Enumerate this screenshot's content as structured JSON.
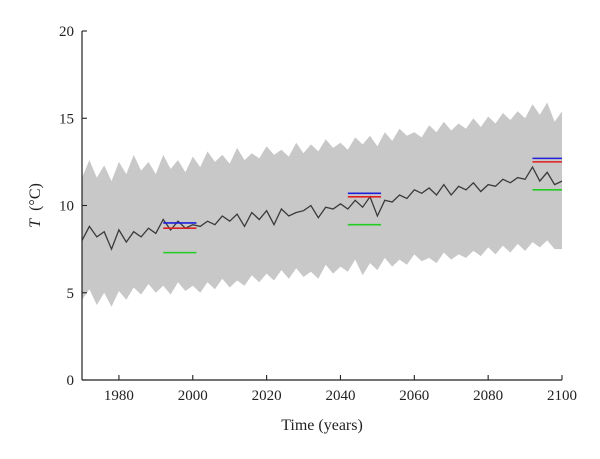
{
  "chart_data": {
    "type": "line",
    "title": "",
    "xlabel": "Time (years)",
    "ylabel": {
      "symbol": "T",
      "unit": "(°C)"
    },
    "xlim": [
      1970,
      2100
    ],
    "ylim": [
      0,
      20
    ],
    "xticks": [
      1980,
      2000,
      2020,
      2040,
      2060,
      2080,
      2100
    ],
    "yticks": [
      0,
      5,
      10,
      15,
      20
    ],
    "grid": false,
    "colors": {
      "band": "#c8c8c8",
      "series": "#3a3a3a",
      "blue": "#1f1fdc",
      "red": "#e02020",
      "green": "#22cc22"
    },
    "band": {
      "x": [
        1970,
        1972,
        1974,
        1976,
        1978,
        1980,
        1982,
        1984,
        1986,
        1988,
        1990,
        1992,
        1994,
        1996,
        1998,
        2000,
        2002,
        2004,
        2006,
        2008,
        2010,
        2012,
        2014,
        2016,
        2018,
        2020,
        2022,
        2024,
        2026,
        2028,
        2030,
        2032,
        2034,
        2036,
        2038,
        2040,
        2042,
        2044,
        2046,
        2048,
        2050,
        2052,
        2054,
        2056,
        2058,
        2060,
        2062,
        2064,
        2066,
        2068,
        2070,
        2072,
        2074,
        2076,
        2078,
        2080,
        2082,
        2084,
        2086,
        2088,
        2090,
        2092,
        2094,
        2096,
        2098,
        2100
      ],
      "upper": [
        11.6,
        12.6,
        11.6,
        12.3,
        11.4,
        12.5,
        11.8,
        12.9,
        12.0,
        12.5,
        11.8,
        12.9,
        12.1,
        12.6,
        11.9,
        12.8,
        12.2,
        13.1,
        12.5,
        12.9,
        12.4,
        13.3,
        12.6,
        13.0,
        12.7,
        13.4,
        12.9,
        13.2,
        12.8,
        13.6,
        13.0,
        13.5,
        13.1,
        13.8,
        13.3,
        13.6,
        13.2,
        13.9,
        13.5,
        14.0,
        13.4,
        14.2,
        13.7,
        14.4,
        14.0,
        14.2,
        13.9,
        14.6,
        14.2,
        14.8,
        14.3,
        14.7,
        14.4,
        15.0,
        14.5,
        15.1,
        14.7,
        15.3,
        14.9,
        15.4,
        15.0,
        15.8,
        15.2,
        15.9,
        14.8,
        15.4
      ],
      "lower": [
        4.6,
        5.2,
        4.3,
        5.0,
        4.2,
        5.1,
        4.6,
        5.3,
        4.9,
        5.5,
        5.0,
        5.4,
        4.9,
        5.6,
        5.1,
        5.4,
        5.0,
        5.6,
        5.2,
        5.8,
        5.3,
        5.7,
        5.4,
        6.0,
        5.6,
        6.1,
        5.7,
        6.3,
        5.8,
        6.4,
        5.9,
        6.2,
        5.8,
        6.6,
        6.1,
        6.5,
        6.2,
        6.9,
        6.0,
        6.7,
        6.3,
        7.0,
        6.5,
        6.9,
        6.6,
        7.2,
        6.8,
        7.0,
        6.7,
        7.3,
        6.9,
        7.2,
        7.0,
        7.4,
        7.1,
        7.6,
        7.2,
        7.7,
        7.3,
        7.8,
        7.4,
        7.9,
        7.6,
        8.0,
        7.5,
        7.5
      ]
    },
    "series": [
      {
        "x": [
          1970,
          1972,
          1974,
          1976,
          1978,
          1980,
          1982,
          1984,
          1986,
          1988,
          1990,
          1992,
          1994,
          1996,
          1998,
          2000,
          2002,
          2004,
          2006,
          2008,
          2010,
          2012,
          2014,
          2016,
          2018,
          2020,
          2022,
          2024,
          2026,
          2028,
          2030,
          2032,
          2034,
          2036,
          2038,
          2040,
          2042,
          2044,
          2046,
          2048,
          2050,
          2052,
          2054,
          2056,
          2058,
          2060,
          2062,
          2064,
          2066,
          2068,
          2070,
          2072,
          2074,
          2076,
          2078,
          2080,
          2082,
          2084,
          2086,
          2088,
          2090,
          2092,
          2094,
          2096,
          2098,
          2100
        ],
        "values": [
          8.0,
          8.8,
          8.2,
          8.5,
          7.5,
          8.6,
          7.9,
          8.5,
          8.2,
          8.7,
          8.4,
          9.2,
          8.6,
          9.1,
          8.7,
          8.9,
          8.8,
          9.1,
          8.9,
          9.4,
          9.1,
          9.5,
          8.8,
          9.6,
          9.2,
          9.7,
          8.9,
          9.8,
          9.4,
          9.6,
          9.7,
          10.0,
          9.3,
          9.9,
          9.8,
          10.1,
          9.8,
          10.3,
          9.9,
          10.5,
          9.4,
          10.3,
          10.2,
          10.6,
          10.4,
          10.9,
          10.7,
          11.0,
          10.6,
          11.2,
          10.6,
          11.1,
          10.9,
          11.3,
          10.8,
          11.2,
          11.1,
          11.5,
          11.3,
          11.6,
          11.5,
          12.2,
          11.4,
          11.9,
          11.2,
          11.4
        ]
      }
    ],
    "mean_lines": [
      {
        "color": "blue",
        "x": [
          1992,
          2001
        ],
        "y": 9.0
      },
      {
        "color": "red",
        "x": [
          1992,
          2001
        ],
        "y": 8.7
      },
      {
        "color": "green",
        "x": [
          1992,
          2001
        ],
        "y": 7.3
      },
      {
        "color": "blue",
        "x": [
          2042,
          2051
        ],
        "y": 10.7
      },
      {
        "color": "red",
        "x": [
          2042,
          2051
        ],
        "y": 10.5
      },
      {
        "color": "green",
        "x": [
          2042,
          2051
        ],
        "y": 8.9
      },
      {
        "color": "blue",
        "x": [
          2092,
          2100
        ],
        "y": 12.7
      },
      {
        "color": "red",
        "x": [
          2092,
          2100
        ],
        "y": 12.5
      },
      {
        "color": "green",
        "x": [
          2092,
          2100
        ],
        "y": 10.9
      }
    ]
  }
}
